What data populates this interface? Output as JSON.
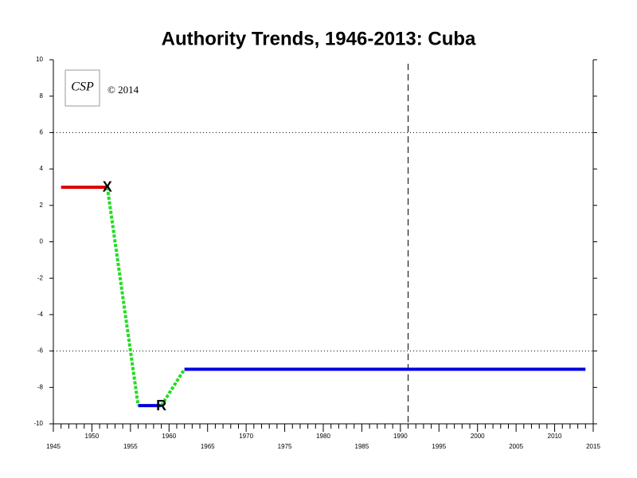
{
  "chart_data": {
    "type": "line",
    "title": "Authority Trends, 1946-2013: Cuba",
    "logo": "CSP",
    "copyright": "© 2014",
    "xlim": [
      1945,
      2015
    ],
    "ylim": [
      -10,
      10
    ],
    "xticks": [
      1945,
      1950,
      1955,
      1960,
      1965,
      1970,
      1975,
      1980,
      1985,
      1990,
      1995,
      2000,
      2005,
      2010,
      2015
    ],
    "xminorticks": [
      1946,
      1947,
      1948,
      1949,
      1951,
      1952,
      1953,
      1954,
      1956,
      1957,
      1958,
      1959,
      1961,
      1962,
      1963,
      1964,
      1966,
      1967,
      1968,
      1969,
      1971,
      1972,
      1973,
      1974,
      1976,
      1977,
      1978,
      1979,
      1981,
      1982,
      1983,
      1984,
      1986,
      1987,
      1988,
      1989,
      1991,
      1992,
      1993,
      1994,
      1996,
      1997,
      1998,
      1999,
      2001,
      2002,
      2003,
      2004,
      2006,
      2007,
      2008,
      2009,
      2011,
      2012,
      2013,
      2014
    ],
    "yticks": [
      -10,
      -8,
      -6,
      -4,
      -2,
      0,
      2,
      4,
      6,
      8,
      10
    ],
    "hlines": [
      6,
      -6
    ],
    "vlines": [
      1991
    ],
    "series": [
      {
        "color": "#dd0000",
        "style": "solid",
        "x": [
          1946,
          1952
        ],
        "values": [
          3,
          3
        ]
      },
      {
        "color": "#22dd22",
        "style": "dashed",
        "x": [
          1952,
          1956
        ],
        "values": [
          3,
          -9
        ]
      },
      {
        "color": "#0000dd",
        "style": "solid",
        "x": [
          1956,
          1959
        ],
        "values": [
          -9,
          -9
        ]
      },
      {
        "color": "#22dd22",
        "style": "dashed",
        "x": [
          1959,
          1962
        ],
        "values": [
          -9,
          -7
        ]
      },
      {
        "color": "#0000dd",
        "style": "solid",
        "x": [
          1962,
          2014
        ],
        "values": [
          -7,
          -7
        ]
      }
    ],
    "annotations": [
      {
        "text": "X",
        "x": 1952,
        "y": 3
      },
      {
        "text": "R",
        "x": 1959,
        "y": -9
      }
    ]
  }
}
